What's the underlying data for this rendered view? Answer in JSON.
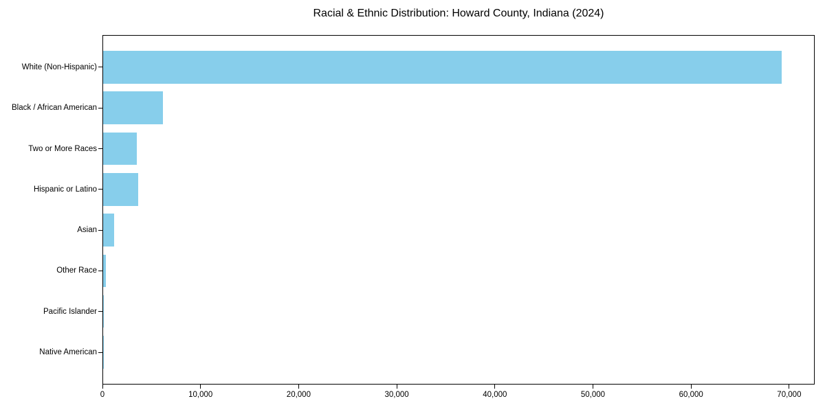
{
  "chart_data": {
    "type": "bar",
    "orientation": "horizontal",
    "title": "Racial & Ethnic Distribution: Howard County, Indiana (2024)",
    "xlabel": "",
    "ylabel": "",
    "categories": [
      "White (Non-Hispanic)",
      "Black / African American",
      "Two or More Races",
      "Hispanic or Latino",
      "Asian",
      "Other Race",
      "Pacific Islander",
      "Native American"
    ],
    "values": [
      69180,
      6080,
      3450,
      3550,
      1150,
      250,
      40,
      30
    ],
    "xlim": [
      0,
      72600
    ],
    "xticks": [
      0,
      10000,
      20000,
      30000,
      40000,
      50000,
      60000,
      70000
    ],
    "xtick_labels": [
      "0",
      "10,000",
      "20,000",
      "30,000",
      "40,000",
      "50,000",
      "60,000",
      "70,000"
    ],
    "grid": false,
    "legend": null,
    "bar_color": "#87CEEB",
    "spine_color": "#000000",
    "text_color": "#000000",
    "background_color": "#ffffff"
  }
}
